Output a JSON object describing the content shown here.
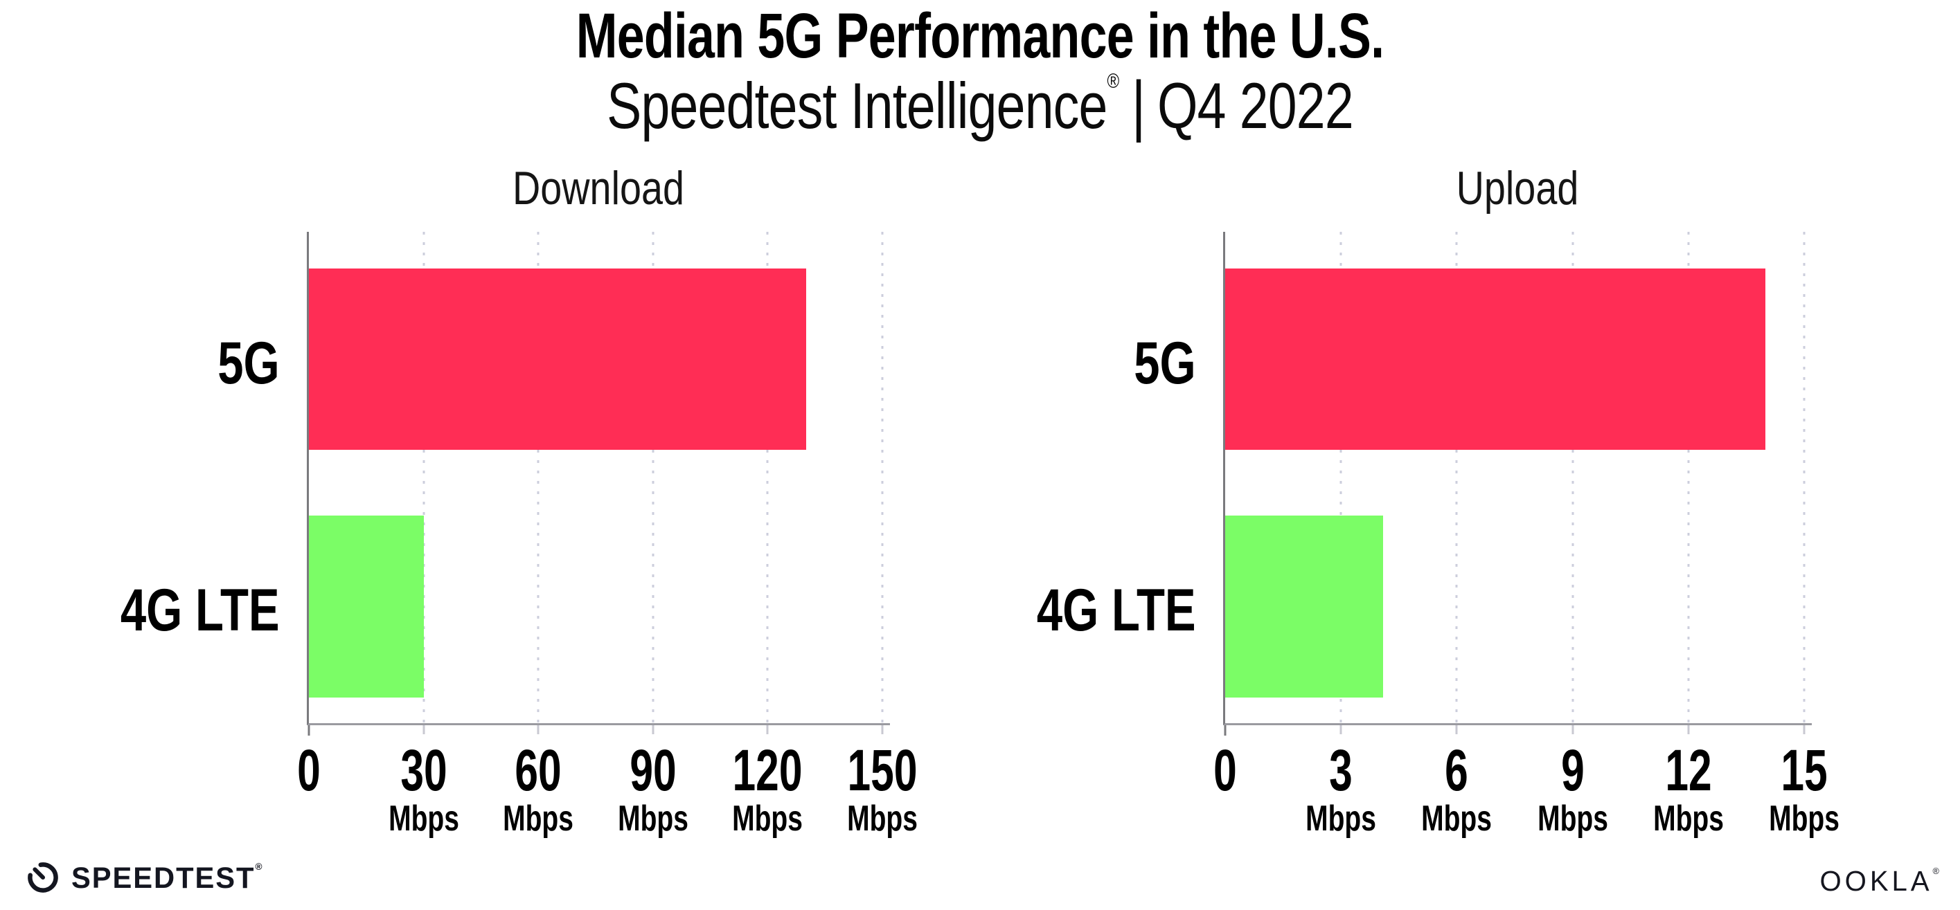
{
  "header": {
    "title": "Median 5G Performance in the U.S.",
    "subtitle_brand": "Speedtest Intelligence",
    "subtitle_reg": "®",
    "subtitle_separator": "|",
    "subtitle_period": "Q4 2022"
  },
  "chart_data": [
    {
      "type": "bar",
      "orientation": "horizontal",
      "title": "Download",
      "categories": [
        "5G",
        "4G LTE"
      ],
      "values": [
        130,
        30
      ],
      "unit": "Mbps",
      "xticks": [
        0,
        30,
        60,
        90,
        120,
        150
      ],
      "xlim": [
        0,
        152
      ],
      "bar_colors": [
        "#FF2D55",
        "#7BFD66"
      ],
      "grid": "dotted-vertical",
      "legend": "none"
    },
    {
      "type": "bar",
      "orientation": "horizontal",
      "title": "Upload",
      "categories": [
        "5G",
        "4G LTE"
      ],
      "values": [
        14,
        4.1
      ],
      "unit": "Mbps",
      "xticks": [
        0,
        3,
        6,
        9,
        12,
        15
      ],
      "xlim": [
        0,
        15.2
      ],
      "bar_colors": [
        "#FF2D55",
        "#7BFD66"
      ],
      "grid": "dotted-vertical",
      "legend": "none"
    }
  ],
  "footer": {
    "speedtest_label": "SPEEDTEST",
    "speedtest_reg": "®",
    "ookla_label": "OOKLA",
    "ookla_reg": "®"
  },
  "colors": {
    "bar_5g": "#FF2D55",
    "bar_4g_lte": "#7BFD66",
    "axis_line": "#9a9aa0",
    "left_spine": "#7a7a7e",
    "gridline_dots": "#c3c5d6",
    "text": "#000000",
    "background": "#ffffff"
  }
}
